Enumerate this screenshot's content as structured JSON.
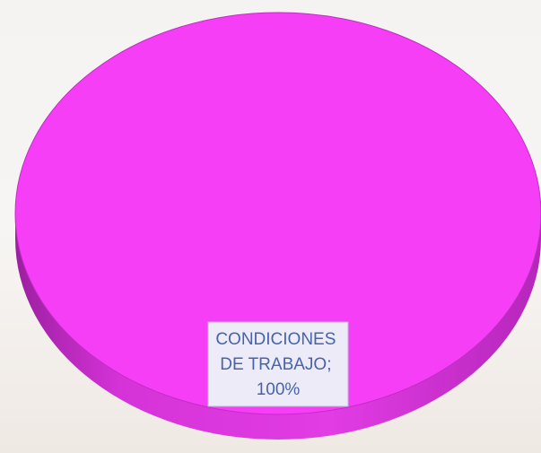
{
  "chart_data": {
    "type": "pie",
    "values": [
      100
    ],
    "value_labels": [
      "CONDICIONES DE TRABAJO; 100%"
    ],
    "colors": [
      "#f53ef5"
    ]
  }
}
